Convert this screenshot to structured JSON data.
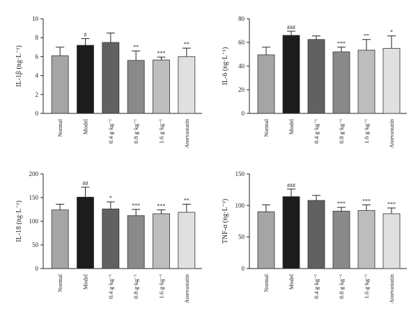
{
  "chart_data": [
    {
      "type": "bar",
      "ylabel": "IL-1β (ng·L⁻¹)",
      "ylim": [
        0,
        10
      ],
      "yticks": [
        "0",
        "2",
        "4",
        "6",
        "8",
        "10"
      ],
      "categories": [
        "Normal",
        "Model",
        "0.4 g·kg⁻¹",
        "0.8 g·kg⁻¹",
        "1.6 g·kg⁻¹",
        "Atorvastatin"
      ],
      "values": [
        6.1,
        7.2,
        7.5,
        5.6,
        5.65,
        6.0
      ],
      "errors": [
        0.9,
        0.7,
        1.0,
        1.0,
        0.3,
        0.9
      ],
      "significance": [
        "",
        "#",
        "",
        "**",
        "***",
        "**"
      ],
      "colors": [
        "#a5a5a5",
        "#1c1c1c",
        "#616161",
        "#8a8a8a",
        "#bdbdbd",
        "#e0e0e0"
      ]
    },
    {
      "type": "bar",
      "ylabel": "IL-6 (ng·L⁻¹)",
      "ylim": [
        0,
        80
      ],
      "yticks": [
        "0",
        "20",
        "40",
        "60",
        "80"
      ],
      "categories": [
        "Normal",
        "Model",
        "0.4 g·kg⁻¹",
        "0.8 g·kg⁻¹",
        "1.6 g·kg⁻¹",
        "Atorvastatin"
      ],
      "values": [
        49.5,
        66,
        62.5,
        52,
        53.5,
        55
      ],
      "errors": [
        6.5,
        3.5,
        3.0,
        4.0,
        9.0,
        10.5
      ],
      "significance": [
        "",
        "###",
        "",
        "***",
        "**",
        "*"
      ],
      "colors": [
        "#a5a5a5",
        "#1c1c1c",
        "#616161",
        "#8a8a8a",
        "#bdbdbd",
        "#e0e0e0"
      ]
    },
    {
      "type": "bar",
      "ylabel": "IL-18 (ng·L⁻¹)",
      "ylim": [
        0,
        200
      ],
      "yticks": [
        "0",
        "50",
        "100",
        "150",
        "200"
      ],
      "categories": [
        "Normal",
        "Model",
        "0.4 g·kg⁻¹",
        "0.8 g·kg⁻¹",
        "1.6 g·kg⁻¹",
        "Atorvastatin"
      ],
      "values": [
        124,
        151,
        126,
        112,
        116,
        119
      ],
      "errors": [
        12,
        21,
        15,
        13,
        8,
        17
      ],
      "significance": [
        "",
        "##",
        "*",
        "***",
        "***",
        "**"
      ],
      "colors": [
        "#a5a5a5",
        "#1c1c1c",
        "#616161",
        "#8a8a8a",
        "#bdbdbd",
        "#e0e0e0"
      ]
    },
    {
      "type": "bar",
      "ylabel": "TNF-α (ng·L⁻¹)",
      "ylim": [
        0,
        150
      ],
      "yticks": [
        "0",
        "50",
        "100",
        "150"
      ],
      "categories": [
        "Normal",
        "Model",
        "0.4 g·kg⁻¹",
        "0.8 g·kg⁻¹",
        "1.6 g·kg⁻¹",
        "Atorvastatin"
      ],
      "values": [
        90,
        114,
        108,
        91,
        92,
        87
      ],
      "errors": [
        11,
        12,
        8,
        6,
        9,
        9
      ],
      "significance": [
        "",
        "###",
        "",
        "***",
        "***",
        "***"
      ],
      "colors": [
        "#a5a5a5",
        "#1c1c1c",
        "#616161",
        "#8a8a8a",
        "#bdbdbd",
        "#e0e0e0"
      ]
    }
  ]
}
